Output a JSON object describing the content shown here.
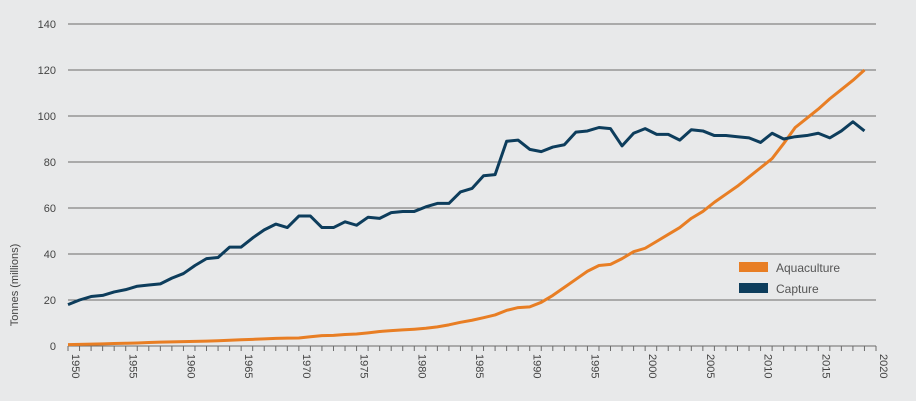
{
  "chart_data": {
    "type": "line",
    "title": "",
    "xlabel": "",
    "ylabel": "Tonnes (millions)",
    "xlim": [
      1950,
      2020
    ],
    "ylim": [
      0,
      140
    ],
    "grid": true,
    "legend_position": "right-middle",
    "y_ticks": [
      "0",
      "20",
      "40",
      "60",
      "80",
      "100",
      "120",
      "140"
    ],
    "x_ticks": [
      "1950",
      "1955",
      "1960",
      "1965",
      "1970",
      "1975",
      "1980",
      "1985",
      "1990",
      "1995",
      "2000",
      "2005",
      "2010",
      "2015",
      "2020"
    ],
    "x_start": 1950,
    "series": [
      {
        "name": "Aquaculture",
        "color": "#e87e24",
        "values": [
          0.6,
          0.7,
          0.8,
          0.9,
          1.1,
          1.2,
          1.3,
          1.5,
          1.7,
          1.8,
          1.9,
          2,
          2.1,
          2.3,
          2.5,
          2.7,
          2.9,
          3.1,
          3.3,
          3.4,
          3.5,
          4,
          4.5,
          4.6,
          5,
          5.2,
          5.7,
          6.3,
          6.7,
          7,
          7.3,
          7.7,
          8.3,
          9.2,
          10.3,
          11.2,
          12.3,
          13.5,
          15.5,
          16.7,
          17,
          19,
          22,
          25.5,
          29,
          32.5,
          35,
          35.5,
          38,
          41,
          42.5,
          45.5,
          48.5,
          51.5,
          55.5,
          58.5,
          62.5,
          66,
          69.5,
          73.5,
          77.5,
          81.5,
          88,
          95,
          99,
          103,
          107.5,
          111.5,
          115.5,
          120
        ]
      },
      {
        "name": "Capture",
        "color": "#0d3d5c",
        "values": [
          18,
          20,
          21.5,
          22,
          23.5,
          24.5,
          26,
          26.5,
          27,
          29.5,
          31.5,
          35,
          38,
          38.5,
          43,
          43,
          47,
          50.5,
          53,
          51.5,
          56.5,
          56.5,
          51.5,
          51.5,
          54,
          52.5,
          56,
          55.5,
          58,
          58.5,
          58.5,
          60.5,
          62,
          62,
          67,
          68.5,
          74,
          74.5,
          89,
          89.5,
          85.5,
          84.5,
          86.5,
          87.5,
          93,
          93.5,
          95,
          94.5,
          87,
          92.5,
          94.5,
          92,
          92,
          89.5,
          94,
          93.5,
          91.5,
          91.5,
          91,
          90.5,
          88.5,
          92.5,
          90,
          91,
          91.5,
          92.5,
          90.5,
          93.5,
          97.5,
          93.5
        ]
      }
    ]
  }
}
